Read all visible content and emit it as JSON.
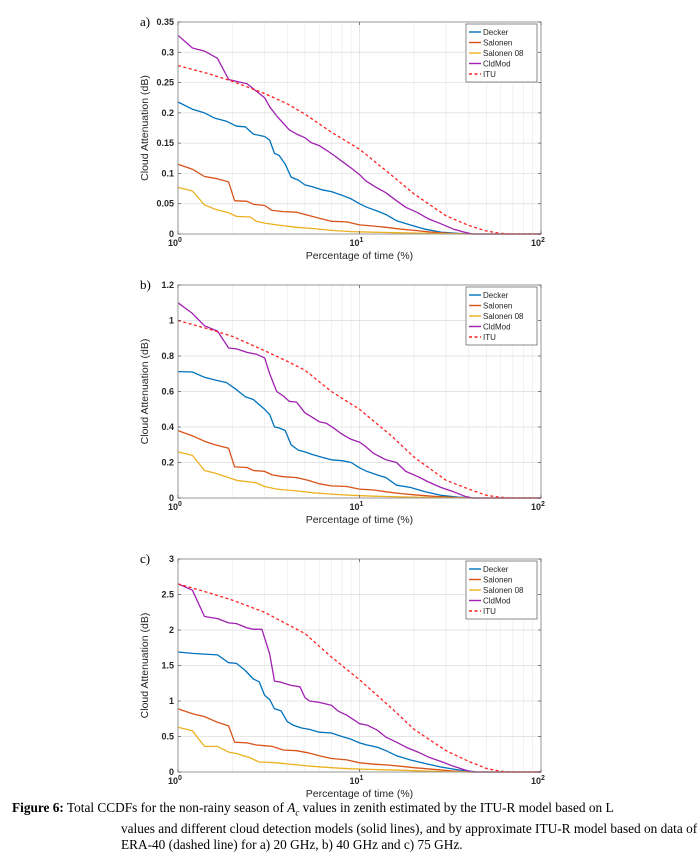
{
  "chart_data": [
    {
      "type": "line",
      "panel_label": "a)",
      "title": "",
      "xlabel": "Percentage of time (%)",
      "ylabel": "Cloud Attenuation (dB)",
      "xscale": "log",
      "xlim": [
        1,
        100
      ],
      "ylim": [
        0,
        0.35
      ],
      "xticks": [
        1,
        10,
        100
      ],
      "xtick_labels": [
        {
          "base": "10",
          "exp": "0"
        },
        {
          "base": "10",
          "exp": "1"
        },
        {
          "base": "10",
          "exp": "2"
        }
      ],
      "yticks": [
        0,
        0.05,
        0.1,
        0.15,
        0.2,
        0.25,
        0.3,
        0.35
      ],
      "ytick_labels": [
        "0",
        "0.05",
        "0.1",
        "0.15",
        "0.2",
        "0.25",
        "0.3",
        "0.35"
      ],
      "grid": true,
      "legend_position": "top-right",
      "series": [
        {
          "name": "Decker",
          "color": "#0072BD",
          "dash": false,
          "x": [
            1,
            1.2,
            1.4,
            1.6,
            1.85,
            2.1,
            2.35,
            2.6,
            3.0,
            3.2,
            3.4,
            3.6,
            3.9,
            4.2,
            4.6,
            5.0,
            5.5,
            6.2,
            7,
            8,
            9,
            10,
            11,
            12.5,
            14,
            16,
            19,
            23,
            28,
            35,
            45,
            100
          ],
          "y": [
            0.218,
            0.206,
            0.2,
            0.191,
            0.186,
            0.178,
            0.177,
            0.165,
            0.161,
            0.155,
            0.133,
            0.13,
            0.115,
            0.094,
            0.089,
            0.081,
            0.078,
            0.073,
            0.07,
            0.064,
            0.058,
            0.05,
            0.044,
            0.038,
            0.032,
            0.022,
            0.015,
            0.008,
            0.003,
            0.001,
            0,
            0
          ]
        },
        {
          "name": "Salonen",
          "color": "#D95319",
          "dash": false,
          "x": [
            1,
            1.2,
            1.4,
            1.6,
            1.9,
            2.05,
            2.4,
            2.6,
            3.0,
            3.3,
            3.8,
            4.5,
            5.2,
            6,
            7,
            8.5,
            10,
            12,
            14,
            17,
            20,
            25,
            32,
            40,
            100
          ],
          "y": [
            0.115,
            0.107,
            0.095,
            0.092,
            0.086,
            0.055,
            0.054,
            0.049,
            0.047,
            0.039,
            0.037,
            0.036,
            0.031,
            0.026,
            0.021,
            0.02,
            0.015,
            0.013,
            0.011,
            0.008,
            0.006,
            0.003,
            0.001,
            0,
            0
          ]
        },
        {
          "name": "Salonen 08",
          "color": "#EDB120",
          "dash": false,
          "x": [
            1,
            1.2,
            1.4,
            1.6,
            1.9,
            2.1,
            2.5,
            2.7,
            3.0,
            3.5,
            4.5,
            5.5,
            7,
            9,
            12,
            17,
            25,
            40,
            100
          ],
          "y": [
            0.077,
            0.071,
            0.048,
            0.041,
            0.035,
            0.029,
            0.028,
            0.021,
            0.018,
            0.015,
            0.011,
            0.009,
            0.006,
            0.004,
            0.003,
            0.002,
            0.001,
            0,
            0
          ]
        },
        {
          "name": "CldMod",
          "color": "#A020B0",
          "dash": false,
          "x": [
            1,
            1.2,
            1.4,
            1.65,
            1.9,
            2.1,
            2.4,
            2.7,
            3.0,
            3.2,
            3.5,
            3.8,
            4.1,
            4.5,
            5.0,
            5.4,
            6,
            6.6,
            7.3,
            8,
            9,
            10,
            10.8,
            12,
            14,
            16,
            18,
            21,
            24,
            28,
            33,
            38,
            42,
            100
          ],
          "y": [
            0.328,
            0.307,
            0.302,
            0.29,
            0.255,
            0.252,
            0.248,
            0.236,
            0.225,
            0.21,
            0.195,
            0.183,
            0.172,
            0.165,
            0.159,
            0.151,
            0.146,
            0.138,
            0.129,
            0.12,
            0.109,
            0.098,
            0.088,
            0.079,
            0.068,
            0.055,
            0.044,
            0.035,
            0.025,
            0.017,
            0.008,
            0.003,
            0,
            0
          ]
        },
        {
          "name": "ITU",
          "color": "#FF2020",
          "dash": true,
          "x": [
            1,
            1.5,
            2,
            3,
            4,
            5,
            7,
            10,
            15,
            20,
            30,
            40,
            50,
            60,
            70,
            100
          ],
          "y": [
            0.278,
            0.264,
            0.252,
            0.232,
            0.215,
            0.198,
            0.168,
            0.14,
            0.097,
            0.066,
            0.03,
            0.014,
            0.005,
            0.001,
            0,
            0
          ]
        }
      ]
    },
    {
      "type": "line",
      "panel_label": "b)",
      "title": "",
      "xlabel": "Percentage of time (%)",
      "ylabel": "Cloud Attenuation (dB)",
      "xscale": "log",
      "xlim": [
        1,
        100
      ],
      "ylim": [
        0,
        1.2
      ],
      "xticks": [
        1,
        10,
        100
      ],
      "xtick_labels": [
        {
          "base": "10",
          "exp": "0"
        },
        {
          "base": "10",
          "exp": "1"
        },
        {
          "base": "10",
          "exp": "2"
        }
      ],
      "yticks": [
        0,
        0.2,
        0.4,
        0.6,
        0.8,
        1,
        1.2
      ],
      "ytick_labels": [
        "0",
        "0.2",
        "0.4",
        "0.6",
        "0.8",
        "1",
        "1.2"
      ],
      "grid": true,
      "legend_position": "top-right",
      "series": [
        {
          "name": "Decker",
          "color": "#0072BD",
          "dash": false,
          "x": [
            1,
            1.2,
            1.4,
            1.6,
            1.85,
            2.1,
            2.35,
            2.6,
            3.0,
            3.2,
            3.4,
            3.6,
            3.9,
            4.2,
            4.6,
            5.0,
            5.5,
            6.2,
            7,
            8,
            9,
            10,
            11,
            12.5,
            14,
            16,
            19,
            23,
            28,
            35,
            45,
            100
          ],
          "y": [
            0.712,
            0.71,
            0.68,
            0.665,
            0.65,
            0.61,
            0.57,
            0.555,
            0.5,
            0.47,
            0.4,
            0.395,
            0.38,
            0.3,
            0.27,
            0.26,
            0.245,
            0.23,
            0.215,
            0.21,
            0.2,
            0.17,
            0.15,
            0.13,
            0.115,
            0.072,
            0.06,
            0.035,
            0.015,
            0.005,
            0,
            0
          ]
        },
        {
          "name": "Salonen",
          "color": "#D95319",
          "dash": false,
          "x": [
            1,
            1.2,
            1.4,
            1.6,
            1.9,
            2.05,
            2.4,
            2.6,
            3.0,
            3.3,
            3.8,
            4.5,
            5.2,
            6,
            7,
            8.5,
            10,
            12,
            14,
            17,
            20,
            25,
            32,
            40,
            100
          ],
          "y": [
            0.38,
            0.35,
            0.32,
            0.3,
            0.28,
            0.175,
            0.172,
            0.155,
            0.15,
            0.13,
            0.12,
            0.115,
            0.1,
            0.08,
            0.068,
            0.065,
            0.05,
            0.045,
            0.035,
            0.025,
            0.018,
            0.01,
            0.004,
            0,
            0
          ]
        },
        {
          "name": "Salonen 08",
          "color": "#EDB120",
          "dash": false,
          "x": [
            1,
            1.2,
            1.4,
            1.6,
            1.9,
            2.1,
            2.5,
            2.7,
            3.0,
            3.5,
            4.5,
            5.5,
            7,
            9,
            12,
            17,
            25,
            40,
            100
          ],
          "y": [
            0.26,
            0.24,
            0.155,
            0.14,
            0.115,
            0.1,
            0.09,
            0.085,
            0.065,
            0.05,
            0.04,
            0.03,
            0.022,
            0.015,
            0.01,
            0.006,
            0.003,
            0,
            0
          ]
        },
        {
          "name": "CldMod",
          "color": "#A020B0",
          "dash": false,
          "x": [
            1,
            1.2,
            1.4,
            1.65,
            1.9,
            2.1,
            2.4,
            2.7,
            3.0,
            3.2,
            3.5,
            3.8,
            4.1,
            4.5,
            5.0,
            5.4,
            6,
            6.6,
            7.3,
            8,
            9,
            10,
            10.8,
            12,
            14,
            16,
            18,
            21,
            24,
            28,
            33,
            38,
            42,
            100
          ],
          "y": [
            1.1,
            1.04,
            0.97,
            0.94,
            0.845,
            0.84,
            0.82,
            0.81,
            0.79,
            0.7,
            0.6,
            0.575,
            0.545,
            0.54,
            0.48,
            0.46,
            0.43,
            0.42,
            0.39,
            0.36,
            0.33,
            0.315,
            0.29,
            0.25,
            0.215,
            0.2,
            0.15,
            0.12,
            0.09,
            0.06,
            0.035,
            0.01,
            0,
            0
          ]
        },
        {
          "name": "ITU",
          "color": "#FF2020",
          "dash": true,
          "x": [
            1,
            1.5,
            2,
            3,
            4,
            5,
            7,
            10,
            15,
            20,
            30,
            40,
            50,
            60,
            70,
            100
          ],
          "y": [
            1.0,
            0.95,
            0.91,
            0.83,
            0.77,
            0.72,
            0.6,
            0.5,
            0.35,
            0.23,
            0.1,
            0.05,
            0.015,
            0.004,
            0,
            0
          ]
        }
      ]
    },
    {
      "type": "line",
      "panel_label": "c)",
      "title": "",
      "xlabel": "Percentage of time (%)",
      "ylabel": "Cloud Attenuation (dB)",
      "xscale": "log",
      "xlim": [
        1,
        100
      ],
      "ylim": [
        0,
        3
      ],
      "xticks": [
        1,
        10,
        100
      ],
      "xtick_labels": [
        {
          "base": "10",
          "exp": "0"
        },
        {
          "base": "10",
          "exp": "1"
        },
        {
          "base": "10",
          "exp": "2"
        }
      ],
      "yticks": [
        0,
        0.5,
        1,
        1.5,
        2,
        2.5,
        3
      ],
      "ytick_labels": [
        "0",
        "0.5",
        "1",
        "1.5",
        "2",
        "2.5",
        "3"
      ],
      "grid": true,
      "legend_position": "top-right",
      "series": [
        {
          "name": "Decker",
          "color": "#0072BD",
          "dash": false,
          "x": [
            1,
            1.2,
            1.4,
            1.65,
            1.9,
            2.1,
            2.35,
            2.6,
            2.8,
            3.0,
            3.2,
            3.4,
            3.7,
            4.0,
            4.3,
            4.8,
            5.3,
            6,
            7,
            8,
            9,
            10,
            11,
            12.5,
            14,
            16,
            19,
            23,
            28,
            35,
            45,
            100
          ],
          "y": [
            1.69,
            1.67,
            1.66,
            1.65,
            1.54,
            1.53,
            1.43,
            1.31,
            1.27,
            1.08,
            1.02,
            0.89,
            0.86,
            0.71,
            0.66,
            0.62,
            0.6,
            0.56,
            0.55,
            0.5,
            0.46,
            0.41,
            0.38,
            0.35,
            0.3,
            0.23,
            0.17,
            0.12,
            0.07,
            0.03,
            0,
            0
          ]
        },
        {
          "name": "Salonen",
          "color": "#D95319",
          "dash": false,
          "x": [
            1,
            1.2,
            1.4,
            1.65,
            1.9,
            2.05,
            2.4,
            2.7,
            3.0,
            3.3,
            3.8,
            4.5,
            5.2,
            6,
            7,
            8.5,
            10,
            12,
            14,
            17,
            20,
            25,
            32,
            40,
            100
          ],
          "y": [
            0.89,
            0.82,
            0.78,
            0.7,
            0.65,
            0.42,
            0.41,
            0.38,
            0.37,
            0.36,
            0.31,
            0.3,
            0.27,
            0.23,
            0.19,
            0.17,
            0.13,
            0.11,
            0.1,
            0.08,
            0.06,
            0.04,
            0.015,
            0,
            0
          ]
        },
        {
          "name": "Salonen 08",
          "color": "#EDB120",
          "dash": false,
          "x": [
            1,
            1.2,
            1.4,
            1.65,
            1.9,
            2.1,
            2.5,
            2.8,
            3.0,
            3.5,
            4.5,
            5.5,
            7,
            9,
            12,
            17,
            25,
            40,
            100
          ],
          "y": [
            0.63,
            0.58,
            0.36,
            0.36,
            0.28,
            0.26,
            0.2,
            0.14,
            0.14,
            0.13,
            0.1,
            0.08,
            0.06,
            0.045,
            0.035,
            0.025,
            0.01,
            0,
            0
          ]
        },
        {
          "name": "CldMod",
          "color": "#A020B0",
          "dash": false,
          "x": [
            1,
            1.2,
            1.4,
            1.65,
            1.9,
            2.1,
            2.4,
            2.6,
            2.9,
            3.2,
            3.4,
            3.6,
            4.2,
            4.7,
            5.0,
            5.3,
            6,
            7,
            7.6,
            8.5,
            9.5,
            10,
            11,
            12.5,
            14,
            16,
            18,
            21,
            24,
            28,
            33,
            38,
            42,
            100
          ],
          "y": [
            2.65,
            2.56,
            2.19,
            2.16,
            2.1,
            2.09,
            2.03,
            2.01,
            2.01,
            1.66,
            1.28,
            1.27,
            1.22,
            1.2,
            1.05,
            1.0,
            0.98,
            0.94,
            0.86,
            0.8,
            0.72,
            0.68,
            0.66,
            0.59,
            0.49,
            0.42,
            0.35,
            0.28,
            0.21,
            0.15,
            0.08,
            0.03,
            0,
            0
          ]
        },
        {
          "name": "ITU",
          "color": "#FF2020",
          "dash": true,
          "x": [
            1,
            1.5,
            2,
            3,
            4,
            5,
            7,
            10,
            15,
            20,
            30,
            40,
            50,
            60,
            70,
            100
          ],
          "y": [
            2.65,
            2.52,
            2.42,
            2.25,
            2.08,
            1.95,
            1.62,
            1.3,
            0.9,
            0.6,
            0.3,
            0.15,
            0.05,
            0.01,
            0,
            0
          ]
        }
      ]
    }
  ],
  "caption": {
    "label": "Figure 6:",
    "line1_pre": "Total CCDFs for the non-rainy season of ",
    "symbol_base": "A",
    "symbol_sub": "c",
    "line1_post": " values in zenith estimated by the ITU-R model based on L",
    "line2": "values and different cloud detection models (solid lines), and by approximate ITU-R model based on data of",
    "line3": "ERA-40 (dashed line) for a) 20 GHz, b) 40 GHz and c) 75 GHz."
  }
}
